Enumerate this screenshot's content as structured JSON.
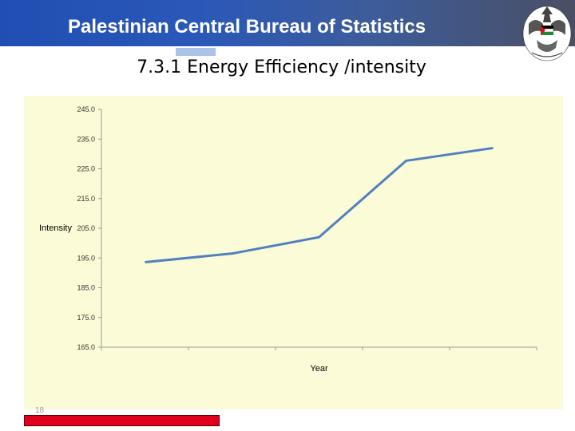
{
  "header": {
    "title": "Palestinian Central Bureau of Statistics"
  },
  "slide": {
    "title": "7.3.1 Energy Efficiency /intensity",
    "number": "18"
  },
  "colors": {
    "header_blue": "#1f4fb3",
    "chart_bg": "#fcfbd8",
    "line": "#4f81bd",
    "red_bar": "#e0001b"
  },
  "icons": {
    "emblem": "palestine-emblem-icon"
  },
  "chart_data": {
    "type": "line",
    "title": "",
    "xlabel": "Year",
    "ylabel": "Intensity",
    "ylim": [
      165,
      245
    ],
    "yticks": [
      "245.0",
      "235.0",
      "225.0",
      "215.0",
      "205.0",
      "195.0",
      "185.0",
      "175.0",
      "165.0"
    ],
    "categories": [
      "",
      "",
      "",
      "",
      ""
    ],
    "series": [
      {
        "values": [
          193.6,
          196.5,
          202.0,
          227.7,
          232.0
        ]
      }
    ],
    "grid": false,
    "legend": "none"
  }
}
